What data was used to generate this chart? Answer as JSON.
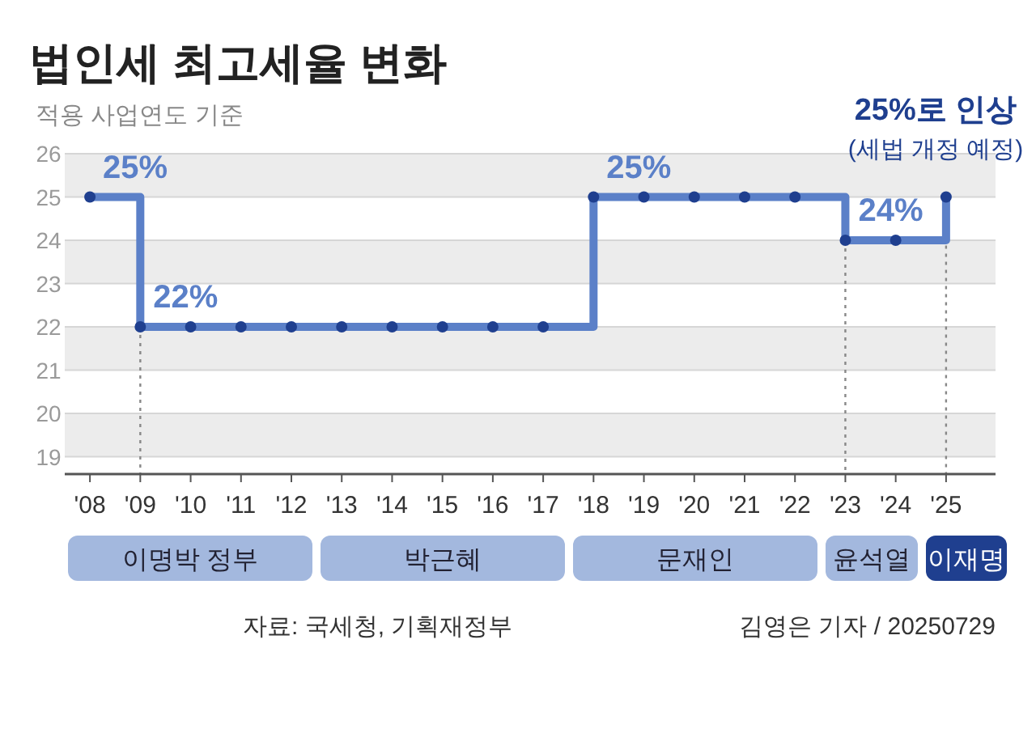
{
  "chart_data": {
    "type": "step",
    "title": "법인세 최고세율 변화",
    "subtitle": "적용 사업연도 기준",
    "categories": [
      "'08",
      "'09",
      "'10",
      "'11",
      "'12",
      "'13",
      "'14",
      "'15",
      "'16",
      "'17",
      "'18",
      "'19",
      "'20",
      "'21",
      "'22",
      "'23",
      "'24",
      "'25"
    ],
    "series": [
      {
        "color": "#5b80c8",
        "values": [
          25,
          22,
          22,
          22,
          22,
          22,
          22,
          22,
          22,
          22,
          25,
          25,
          25,
          25,
          25,
          24,
          24,
          25
        ],
        "value_labels": [
          "25%",
          "22%",
          null,
          null,
          null,
          null,
          null,
          null,
          null,
          null,
          "25%",
          null,
          null,
          null,
          null,
          "24%",
          null,
          null
        ]
      }
    ],
    "ylim": [
      18.6,
      26
    ],
    "yticks": [
      19,
      20,
      21,
      22,
      23,
      24,
      25,
      26
    ],
    "grid": "y",
    "marker": "circle",
    "ref_lines": [
      {
        "axis": "x",
        "value": "'09",
        "line_style": "dotted",
        "color": "#888888"
      },
      {
        "axis": "x",
        "value": "'23",
        "line_style": "dotted",
        "color": "#888888"
      },
      {
        "axis": "x",
        "value": "'25",
        "line_style": "dotted",
        "color": "#888888"
      }
    ],
    "annotations": [
      "이명박 정부",
      "박근혜",
      "문재인",
      "윤석열",
      "이재명",
      {
        "text": "25%로 인상",
        "x": "'25",
        "y": 25
      },
      {
        "text": "(세법 개정 예정)",
        "x": "'25",
        "y": 25
      },
      "자료: 국세청, 기획재정부",
      "김영은 기자 / 20250729"
    ]
  }
}
